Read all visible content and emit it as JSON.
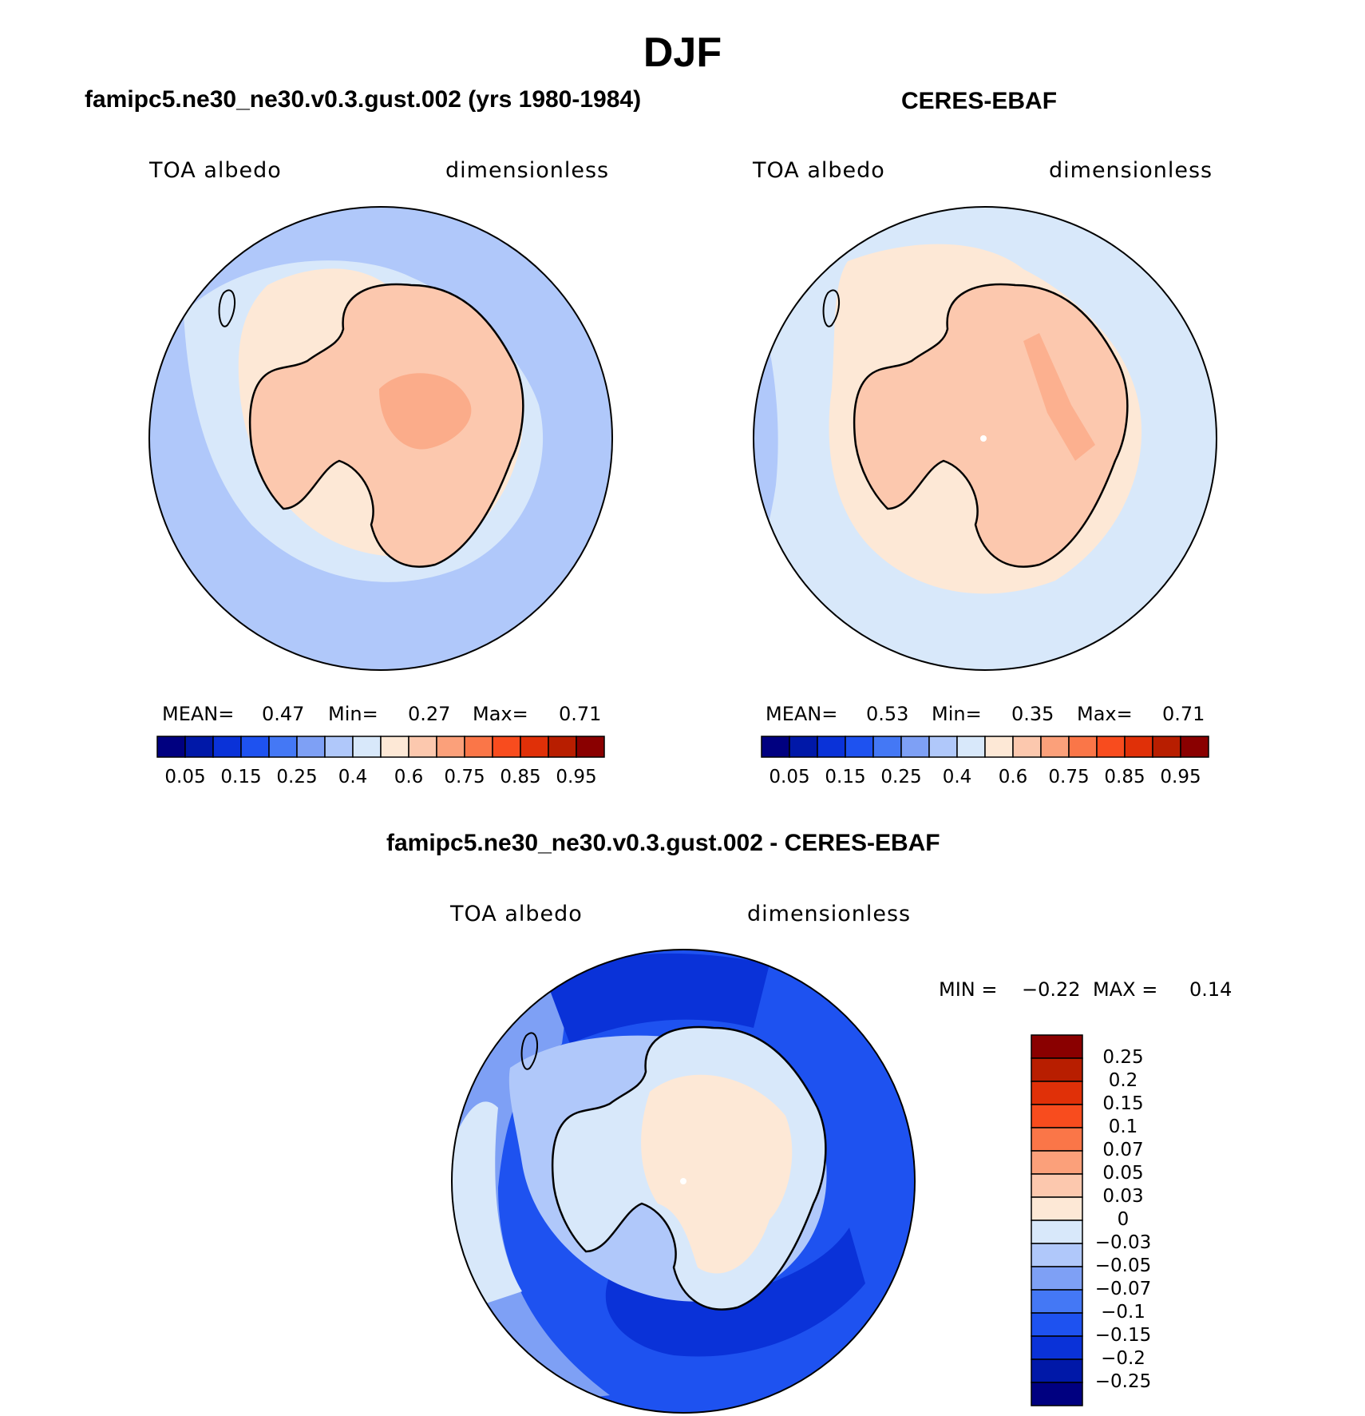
{
  "main_title": "DJF",
  "top_left": {
    "title": "famipc5.ne30_ne30.v0.3.gust.002 (yrs 1980-1984)",
    "variable": "TOA albedo",
    "units": "dimensionless",
    "stats": {
      "mean_label": "MEAN=",
      "mean": "0.47",
      "min_label": "Min=",
      "min": "0.27",
      "max_label": "Max=",
      "max": "0.71"
    }
  },
  "top_right": {
    "title": "CERES-EBAF",
    "variable": "TOA albedo",
    "units": "dimensionless",
    "stats": {
      "mean_label": "MEAN=",
      "mean": "0.53",
      "min_label": "Min=",
      "min": "0.35",
      "max_label": "Max=",
      "max": "0.71"
    }
  },
  "bottom": {
    "title": "famipc5.ne30_ne30.v0.3.gust.002 - CERES-EBAF",
    "variable": "TOA albedo",
    "units": "dimensionless",
    "stats": {
      "min_label": "MIN =",
      "min": "−0.22",
      "max_label": "MAX =",
      "max": "0.14"
    }
  },
  "colors": {
    "scale16": [
      "#000080",
      "#0018a8",
      "#0a32d8",
      "#1e52f0",
      "#4478f5",
      "#7ea0f5",
      "#b0c8fa",
      "#d8e8fa",
      "#fde8d6",
      "#fcc8ae",
      "#fba07a",
      "#fa7648",
      "#f84c1e",
      "#e03008",
      "#b81e00",
      "#8a0000"
    ],
    "scale17": [
      "#000080",
      "#0018a8",
      "#0a32d8",
      "#1e52f0",
      "#4478f5",
      "#7ea0f5",
      "#b0c8fa",
      "#d8e8fa",
      "#fde8d6",
      "#fcc8ae",
      "#fba07a",
      "#fa7648",
      "#f84c1e",
      "#e03008",
      "#b81e00",
      "#8a0000"
    ]
  },
  "chart_data": [
    {
      "type": "polar-contour",
      "title": "famipc5.ne30_ne30.v0.3.gust.002 (yrs 1980-1984)",
      "variable": "TOA albedo",
      "units": "dimensionless",
      "mean": 0.47,
      "min": 0.27,
      "max": 0.71,
      "levels": [
        0.05,
        0.1,
        0.15,
        0.2,
        0.25,
        0.3,
        0.4,
        0.5,
        0.6,
        0.65,
        0.75,
        0.8,
        0.85,
        0.9,
        0.95
      ],
      "colorbar_tick_labels": [
        "0.05",
        "0.15",
        "0.25",
        "0.4",
        "0.6",
        "0.75",
        "0.85",
        "0.95"
      ]
    },
    {
      "type": "polar-contour",
      "title": "CERES-EBAF",
      "variable": "TOA albedo",
      "units": "dimensionless",
      "mean": 0.53,
      "min": 0.35,
      "max": 0.71,
      "levels": [
        0.05,
        0.1,
        0.15,
        0.2,
        0.25,
        0.3,
        0.4,
        0.5,
        0.6,
        0.65,
        0.75,
        0.8,
        0.85,
        0.9,
        0.95
      ],
      "colorbar_tick_labels": [
        "0.05",
        "0.15",
        "0.25",
        "0.4",
        "0.6",
        "0.75",
        "0.85",
        "0.95"
      ]
    },
    {
      "type": "polar-contour",
      "title": "famipc5.ne30_ne30.v0.3.gust.002 - CERES-EBAF",
      "variable": "TOA albedo",
      "units": "dimensionless",
      "min": -0.22,
      "max": 0.14,
      "levels": [
        -0.25,
        -0.2,
        -0.15,
        -0.1,
        -0.07,
        -0.05,
        -0.03,
        0,
        0.03,
        0.05,
        0.07,
        0.1,
        0.15,
        0.2,
        0.25
      ],
      "colorbar_tick_labels": [
        "0.25",
        "0.2",
        "0.15",
        "0.1",
        "0.07",
        "0.05",
        "0.03",
        "0",
        "−0.03",
        "−0.05",
        "−0.07",
        "−0.1",
        "−0.15",
        "−0.2",
        "−0.25"
      ]
    }
  ]
}
